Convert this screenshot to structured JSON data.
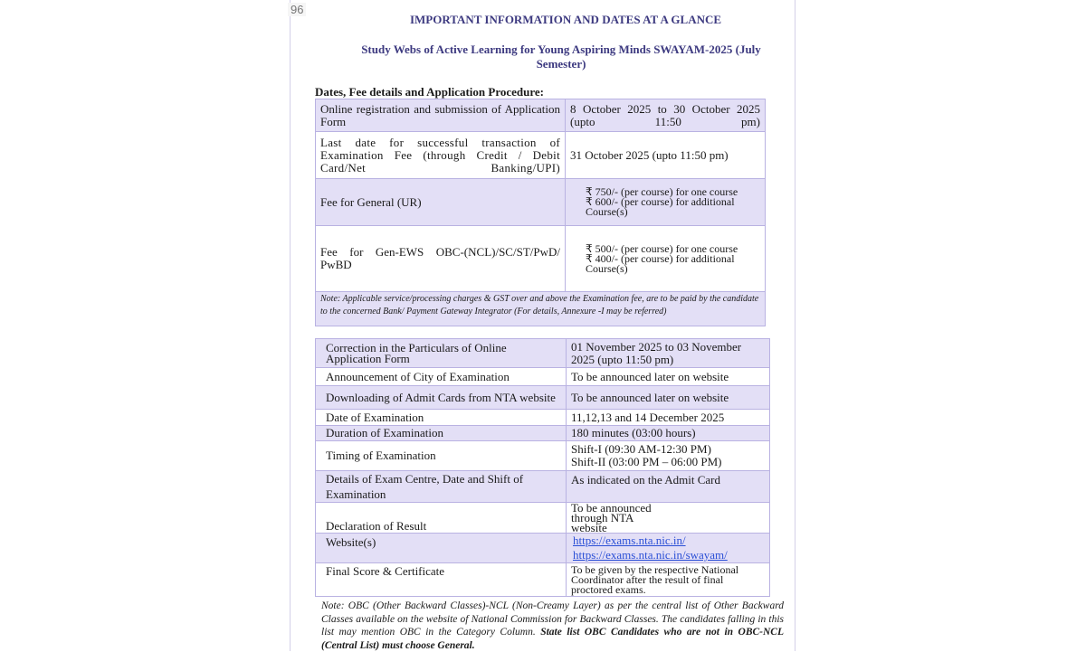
{
  "page_number": "96",
  "title": "IMPORTANT INFORMATION AND DATES AT A GLANCE",
  "subtitle": "Study Webs of Active Learning for Young Aspiring Minds SWAYAM-2025 (July Semester)",
  "section_heading": "Dates, Fee details and Application Procedure:",
  "table1": {
    "rows": [
      {
        "label": "Online registration and submission of Application Form",
        "value": "8 October 2025 to 30 October 2025 (upto 11:50 pm)"
      },
      {
        "label": "Last date for successful transaction of Examination Fee (through Credit / Debit Card/Net Banking/UPI)",
        "value": "31 October 2025 (upto 11:50 pm)"
      },
      {
        "label": "Fee for General (UR)",
        "value": [
          "₹ 750/- (per course) for one course",
          "₹ 600/- (per course) for additional Course(s)"
        ]
      },
      {
        "label": "Fee for Gen-EWS OBC-(NCL)/SC/ST/PwD/ PwBD",
        "value": [
          "₹ 500/- (per course) for one course",
          "₹ 400/- (per course) for additional Course(s)"
        ]
      }
    ],
    "note": "Note: Applicable service/processing charges & GST over and above the Examination fee, are to be paid by the candidate to the concerned Bank/ Payment Gateway Integrator (For details, Annexure -I may be referred)"
  },
  "table2": {
    "rows": [
      {
        "label": "Correction in the Particulars of Online Application Form",
        "value": "01 November 2025 to 03 November 2025 (upto 11:50 pm)"
      },
      {
        "label": "Announcement of City of Examination",
        "value": "To be announced later on website"
      },
      {
        "label": "Downloading of Admit Cards from NTA website",
        "value": "To be announced later on website"
      },
      {
        "label": "Date of Examination",
        "value": "11,12,13 and 14 December 2025"
      },
      {
        "label": "Duration of Examination",
        "value": "180 minutes (03:00 hours)"
      },
      {
        "label": "Timing of Examination",
        "value": [
          "Shift-I (09:30 AM-12:30 PM)",
          "Shift-II (03:00 PM – 06:00 PM)"
        ]
      },
      {
        "label": "Details of Exam Centre, Date and Shift of Examination",
        "value": "As indicated on the Admit Card"
      },
      {
        "label": "Declaration of Result",
        "value": "To be announced through NTA website"
      },
      {
        "label": "Website(s)",
        "value": [
          "https://exams.nta.nic.in/",
          "https://exams.nta.nic.in/swayam/"
        ]
      },
      {
        "label": "Final Score & Certificate",
        "value": "To be given by the respective National Coordinator after the result of final proctored exams."
      }
    ]
  },
  "footnote": {
    "text": "Note: OBC (Other Backward Classes)-NCL (Non-Creamy Layer) as per the central list of Other Backward Classes available on the website of National Commission for Backward Classes. The candidates falling in this list may mention OBC in the Category Column. ",
    "bold": "State list OBC Candidates who are not in OBC-NCL (Central List) must choose General."
  },
  "colors": {
    "heading": "#3d3a80",
    "row_shade": "#e3dff6",
    "border": "#b9b2e2",
    "link": "#2a4fd6"
  }
}
